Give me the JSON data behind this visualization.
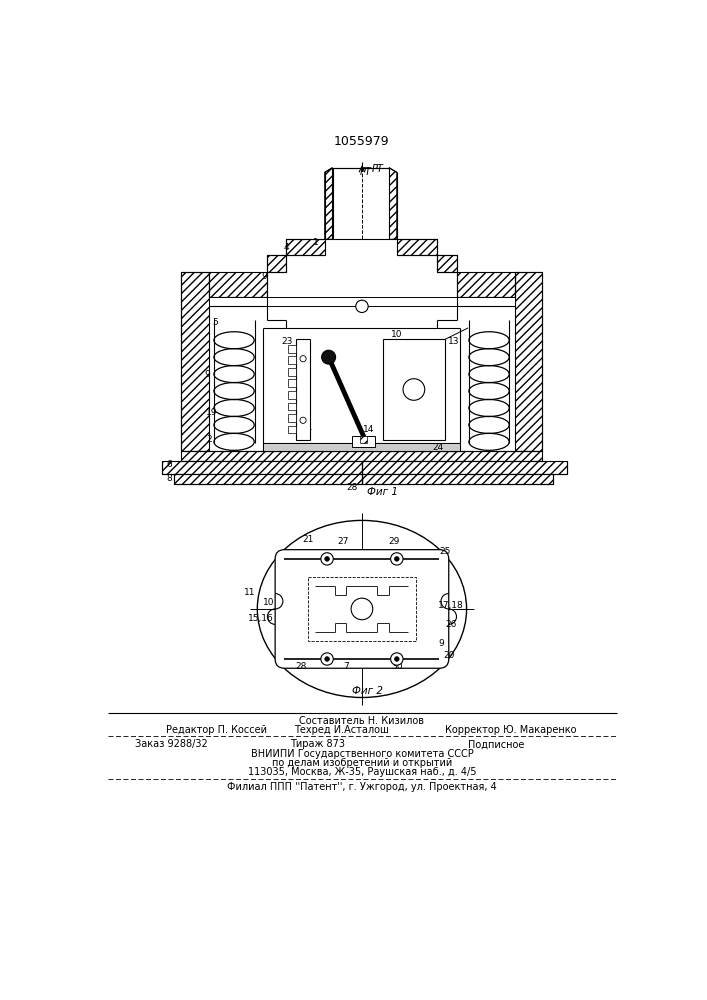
{
  "patent_number": "1055979",
  "bg_color": "#ffffff",
  "footer_composer": "Составитель Н. Кизилов",
  "footer_line1_left": "Редактор П. Коссей",
  "footer_line1_center": "Техред И.Асталош",
  "footer_line1_right": "Корректор Ю. Макаренко",
  "footer_order": "Заказ 9288/32",
  "footer_tirazh": "Тираж 873",
  "footer_podpisnoe": "Подписное",
  "footer_vniip1": "ВНИИПИ Государственного комитета СССР",
  "footer_vniip2": "по делам изобретений и открытий",
  "footer_vniip3": "113035, Москва, Ж-35, Раушская наб., д. 4/5",
  "footer_filial": "Филиал ППП ''Патент'', г. Ужгород, ул. Проектная, 4"
}
